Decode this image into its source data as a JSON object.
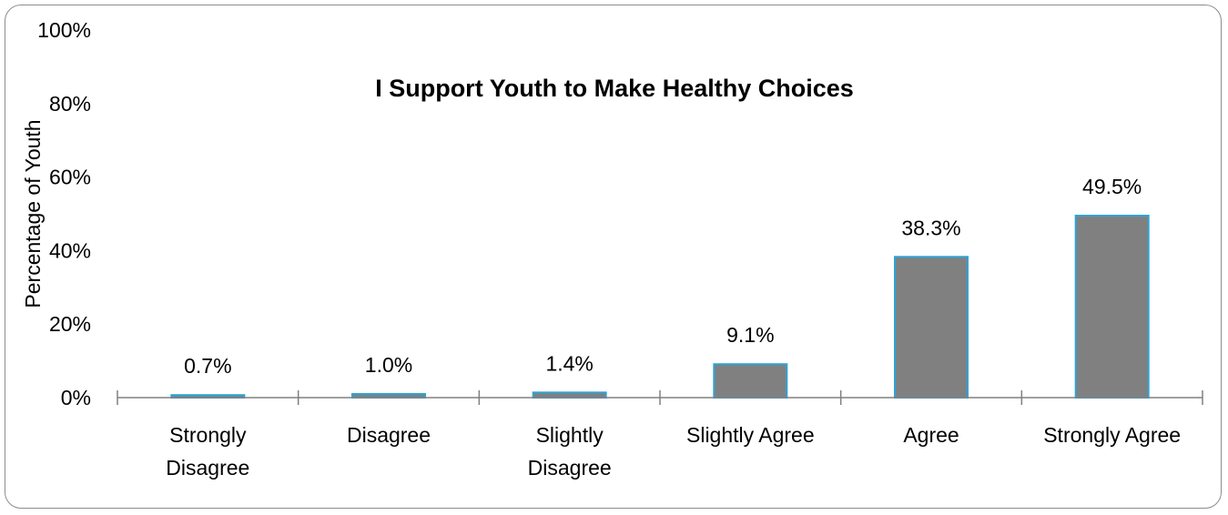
{
  "chart_data": {
    "type": "bar",
    "title": "I Support Youth to Make Healthy Choices",
    "xlabel": "",
    "ylabel": "Percentage of Youth",
    "ylim": [
      0,
      100
    ],
    "yticks": [
      "0%",
      "20%",
      "40%",
      "60%",
      "80%",
      "100%"
    ],
    "categories": [
      [
        "Strongly",
        "Disagree"
      ],
      [
        "Disagree"
      ],
      [
        "Slightly",
        "Disagree"
      ],
      [
        "Slightly Agree"
      ],
      [
        "Agree"
      ],
      [
        "Strongly Agree"
      ]
    ],
    "values": [
      0.7,
      1.0,
      1.4,
      9.1,
      38.3,
      49.5
    ],
    "data_labels": [
      "0.7%",
      "1.0%",
      "1.4%",
      "9.1%",
      "38.3%",
      "49.5%"
    ],
    "colors": {
      "bar_fill": "#808080",
      "bar_stroke": "#2ea3d6",
      "axis": "#808080",
      "frame": "#8c8c8c"
    },
    "grid": false,
    "legend": "none"
  }
}
